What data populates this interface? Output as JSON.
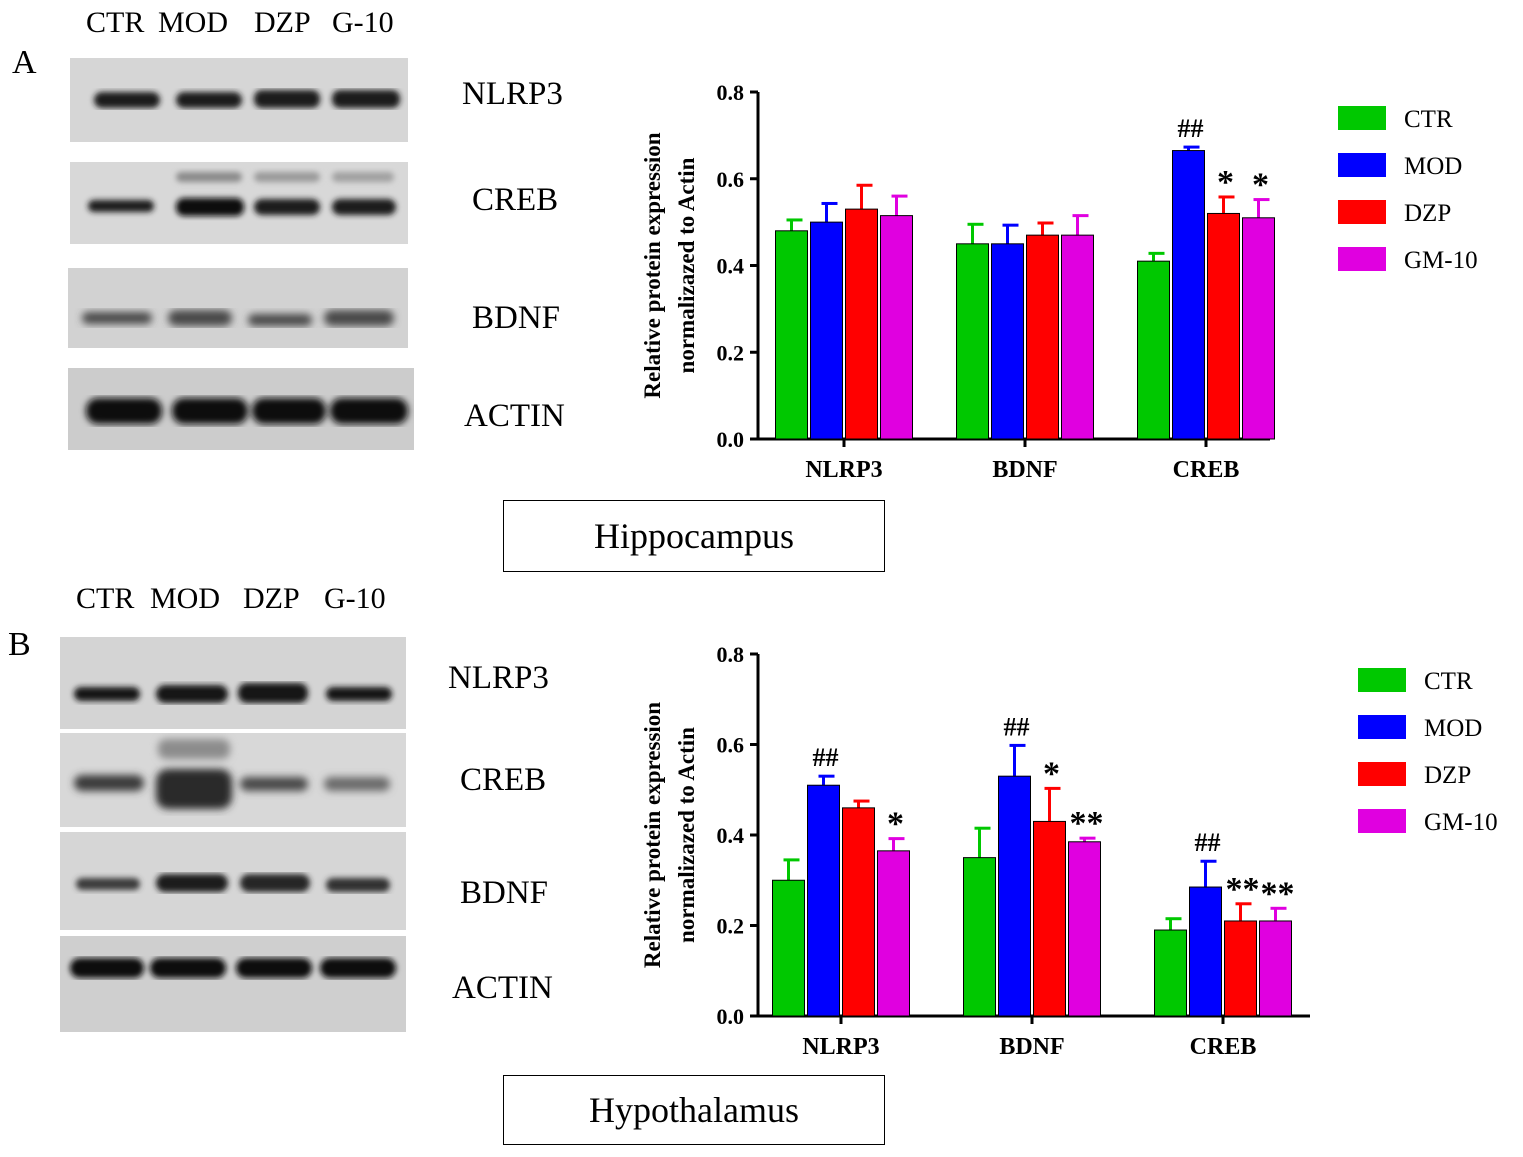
{
  "colors": {
    "CTR": "#00c800",
    "MOD": "#0000ff",
    "DZP": "#ff0000",
    "GM-10": "#e000e0"
  },
  "panels": [
    {
      "letter": "A",
      "lane_labels": [
        "CTR",
        "MOD",
        "DZP",
        "G-10"
      ],
      "blot_names": [
        "NLRP3",
        "CREB",
        "BDNF",
        "ACTIN"
      ],
      "region": "Hippocampus"
    },
    {
      "letter": "B",
      "lane_labels": [
        "CTR",
        "MOD",
        "DZP",
        "G-10"
      ],
      "blot_names": [
        "NLRP3",
        "CREB",
        "BDNF",
        "ACTIN"
      ],
      "region": "Hypothalamus"
    }
  ],
  "chart_data": [
    {
      "type": "bar",
      "title": "",
      "xlabel": "",
      "ylabel": "Relative protein expression normalizazed to Actin",
      "ylabel_lines": [
        "Relative protein expression",
        "normalizazed to Actin"
      ],
      "ylim": [
        0,
        0.8
      ],
      "yticks": [
        "0.0",
        "0.2",
        "0.4",
        "0.6",
        "0.8"
      ],
      "categories": [
        "NLRP3",
        "BDNF",
        "CREB"
      ],
      "legend": "right",
      "series": [
        {
          "name": "CTR",
          "values": [
            0.48,
            0.45,
            0.41
          ],
          "errors": [
            0.025,
            0.045,
            0.018
          ]
        },
        {
          "name": "MOD",
          "values": [
            0.5,
            0.45,
            0.665
          ],
          "errors": [
            0.043,
            0.043,
            0.008
          ]
        },
        {
          "name": "DZP",
          "values": [
            0.53,
            0.47,
            0.52
          ],
          "errors": [
            0.055,
            0.028,
            0.038
          ]
        },
        {
          "name": "GM-10",
          "values": [
            0.515,
            0.47,
            0.51
          ],
          "errors": [
            0.045,
            0.045,
            0.042
          ]
        }
      ],
      "annotations": [
        {
          "category": "CREB",
          "series": "MOD",
          "text": "##"
        },
        {
          "category": "CREB",
          "series": "DZP",
          "text": "*"
        },
        {
          "category": "CREB",
          "series": "GM-10",
          "text": "*"
        }
      ]
    },
    {
      "type": "bar",
      "title": "",
      "xlabel": "",
      "ylabel": "Relative protein expression normalizazed to Actin",
      "ylabel_lines": [
        "Relative protein expression",
        "normalizazed to Actin"
      ],
      "ylim": [
        0,
        0.8
      ],
      "yticks": [
        "0.0",
        "0.2",
        "0.4",
        "0.6",
        "0.8"
      ],
      "categories": [
        "NLRP3",
        "BDNF",
        "CREB"
      ],
      "legend": "right",
      "series": [
        {
          "name": "CTR",
          "values": [
            0.3,
            0.35,
            0.19
          ],
          "errors": [
            0.045,
            0.065,
            0.025
          ]
        },
        {
          "name": "MOD",
          "values": [
            0.51,
            0.53,
            0.285
          ],
          "errors": [
            0.02,
            0.068,
            0.057
          ]
        },
        {
          "name": "DZP",
          "values": [
            0.46,
            0.43,
            0.21
          ],
          "errors": [
            0.015,
            0.073,
            0.038
          ]
        },
        {
          "name": "GM-10",
          "values": [
            0.365,
            0.385,
            0.21
          ],
          "errors": [
            0.027,
            0.008,
            0.028
          ]
        }
      ],
      "annotations": [
        {
          "category": "NLRP3",
          "series": "MOD",
          "text": "##"
        },
        {
          "category": "NLRP3",
          "series": "GM-10",
          "text": "*"
        },
        {
          "category": "BDNF",
          "series": "MOD",
          "text": "##"
        },
        {
          "category": "BDNF",
          "series": "DZP",
          "text": "*"
        },
        {
          "category": "BDNF",
          "series": "GM-10",
          "text": "**"
        },
        {
          "category": "CREB",
          "series": "MOD",
          "text": "##"
        },
        {
          "category": "CREB",
          "series": "DZP",
          "text": "**"
        },
        {
          "category": "CREB",
          "series": "GM-10",
          "text": "**"
        }
      ]
    }
  ]
}
